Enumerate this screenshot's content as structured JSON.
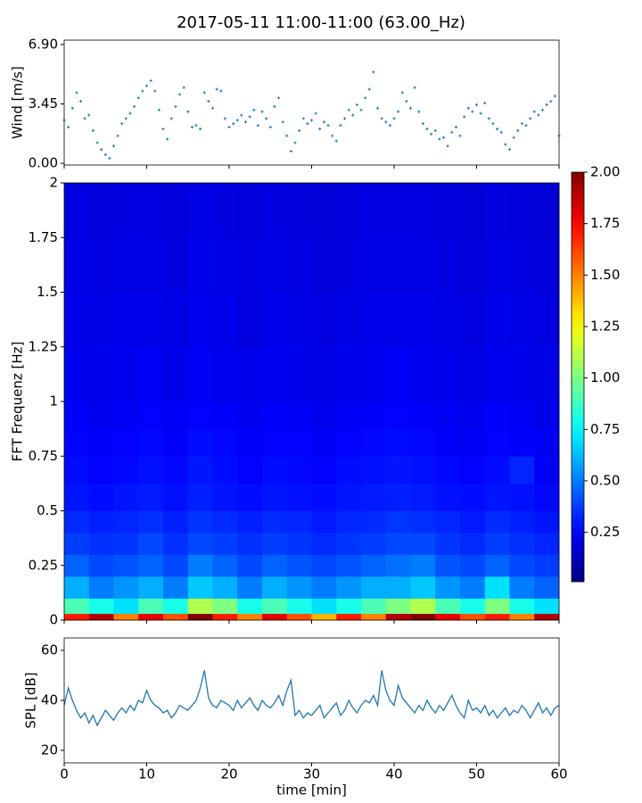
{
  "chart_data": [
    {
      "type": "scatter",
      "title": "2017-05-11 11:00-11:00 (63.00_Hz)",
      "ylabel": "Wind [m/s]",
      "color": "#1f77b4",
      "x": [
        0,
        0.5,
        1,
        1.5,
        2,
        2.5,
        3,
        3.5,
        4,
        4.5,
        5,
        5.5,
        6,
        6.5,
        7,
        7.5,
        8,
        8.5,
        9,
        9.5,
        10,
        10.5,
        11,
        11.5,
        12,
        12.5,
        13,
        13.5,
        14,
        14.5,
        15,
        15.5,
        16,
        16.5,
        17,
        17.5,
        18,
        18.5,
        19,
        19.5,
        20,
        20.5,
        21,
        21.5,
        22,
        22.5,
        23,
        23.5,
        24,
        24.5,
        25,
        25.5,
        26,
        26.5,
        27,
        27.5,
        28,
        28.5,
        29,
        29.5,
        30,
        30.5,
        31,
        31.5,
        32,
        32.5,
        33,
        33.5,
        34,
        34.5,
        35,
        35.5,
        36,
        36.5,
        37,
        37.5,
        38,
        38.5,
        39,
        39.5,
        40,
        40.5,
        41,
        41.5,
        42,
        42.5,
        43,
        43.5,
        44,
        44.5,
        45,
        45.5,
        46,
        46.5,
        47,
        47.5,
        48,
        48.5,
        49,
        49.5,
        50,
        50.5,
        51,
        51.5,
        52,
        52.5,
        53,
        53.5,
        54,
        54.5,
        55,
        55.5,
        56,
        56.5,
        57,
        57.5,
        58,
        58.5,
        59,
        59.5,
        60
      ],
      "values": [
        2.5,
        2.1,
        3.2,
        4.1,
        3.6,
        2.6,
        2.8,
        1.9,
        1.2,
        0.8,
        0.5,
        0.3,
        1.0,
        1.6,
        2.3,
        2.6,
        2.9,
        3.3,
        3.8,
        4.2,
        4.5,
        4.8,
        4.2,
        3.1,
        2.0,
        1.4,
        2.6,
        3.3,
        4.0,
        4.4,
        3.0,
        2.1,
        2.2,
        2.0,
        4.1,
        3.6,
        3.2,
        4.3,
        4.2,
        2.6,
        2.1,
        2.3,
        2.5,
        2.8,
        2.4,
        2.7,
        3.1,
        2.2,
        3.0,
        2.6,
        2.1,
        3.3,
        3.8,
        2.4,
        1.6,
        0.7,
        1.2,
        1.9,
        2.6,
        2.3,
        2.5,
        2.9,
        2.0,
        2.4,
        2.2,
        1.6,
        1.3,
        2.2,
        2.6,
        3.1,
        2.8,
        3.4,
        3.1,
        3.8,
        4.3,
        5.3,
        3.2,
        2.6,
        2.4,
        2.2,
        2.6,
        3.0,
        4.1,
        3.6,
        3.2,
        4.4,
        3.0,
        2.3,
        2.0,
        1.7,
        1.9,
        1.4,
        1.5,
        1.0,
        1.8,
        2.1,
        1.6,
        2.7,
        3.2,
        3.0,
        3.4,
        2.9,
        3.5,
        2.6,
        2.3,
        2.0,
        1.8,
        1.1,
        0.8,
        1.5,
        1.9,
        2.3,
        2.2,
        2.6,
        3.0,
        2.8,
        3.1,
        3.4,
        3.6,
        3.9,
        1.6
      ],
      "xlim": [
        0,
        60
      ],
      "xticks": [
        0,
        10,
        20,
        30,
        40,
        50,
        60
      ],
      "ylim": [
        -0.1,
        7.15
      ],
      "yticks": [
        {
          "value": 0,
          "label": "0.00"
        },
        {
          "value": 3.45,
          "label": "3.45"
        },
        {
          "value": 6.9,
          "label": "6.90"
        }
      ]
    },
    {
      "type": "heatmap",
      "ylabel": "FFT Frequenz [Hz]",
      "colormap": "jet",
      "clim": [
        0.01,
        2.0
      ],
      "x_edges": [
        0,
        3,
        6,
        9,
        12,
        15,
        18,
        21,
        24,
        27,
        30,
        33,
        36,
        39,
        42,
        45,
        48,
        51,
        54,
        57,
        60
      ],
      "y_edges": [
        0,
        0.03,
        0.1,
        0.2,
        0.3,
        0.4,
        0.5,
        0.625,
        0.75,
        0.875,
        1,
        1.25,
        1.5,
        1.75,
        2
      ],
      "values": [
        [
          1.7,
          1.9,
          1.5,
          1.8,
          1.6,
          2.0,
          1.7,
          1.5,
          1.8,
          1.6,
          1.4,
          1.7,
          1.5,
          1.9,
          2.0,
          1.8,
          1.6,
          1.7,
          1.5,
          1.9
        ],
        [
          0.9,
          0.8,
          0.7,
          0.9,
          0.8,
          1.1,
          1.0,
          0.8,
          0.9,
          0.8,
          0.7,
          0.8,
          0.9,
          1.0,
          1.1,
          0.9,
          0.8,
          1.0,
          0.8,
          0.7
        ],
        [
          0.6,
          0.5,
          0.55,
          0.6,
          0.5,
          0.65,
          0.6,
          0.5,
          0.6,
          0.55,
          0.5,
          0.55,
          0.6,
          0.6,
          0.65,
          0.55,
          0.5,
          0.7,
          0.5,
          0.45
        ],
        [
          0.45,
          0.4,
          0.42,
          0.45,
          0.4,
          0.5,
          0.45,
          0.4,
          0.45,
          0.42,
          0.4,
          0.42,
          0.45,
          0.48,
          0.5,
          0.42,
          0.4,
          0.45,
          0.4,
          0.38
        ],
        [
          0.38,
          0.35,
          0.36,
          0.4,
          0.35,
          0.4,
          0.38,
          0.35,
          0.38,
          0.36,
          0.34,
          0.36,
          0.38,
          0.4,
          0.4,
          0.36,
          0.34,
          0.38,
          0.35,
          0.33
        ],
        [
          0.34,
          0.32,
          0.33,
          0.35,
          0.32,
          0.36,
          0.34,
          0.32,
          0.34,
          0.33,
          0.31,
          0.33,
          0.34,
          0.36,
          0.35,
          0.33,
          0.31,
          0.34,
          0.32,
          0.3
        ],
        [
          0.3,
          0.28,
          0.3,
          0.31,
          0.29,
          0.32,
          0.3,
          0.28,
          0.3,
          0.29,
          0.28,
          0.3,
          0.31,
          0.32,
          0.31,
          0.29,
          0.28,
          0.3,
          0.29,
          0.27
        ],
        [
          0.28,
          0.26,
          0.27,
          0.29,
          0.27,
          0.3,
          0.28,
          0.26,
          0.28,
          0.27,
          0.26,
          0.28,
          0.29,
          0.3,
          0.29,
          0.27,
          0.26,
          0.28,
          0.33,
          0.25
        ],
        [
          0.26,
          0.25,
          0.26,
          0.27,
          0.25,
          0.28,
          0.27,
          0.25,
          0.26,
          0.26,
          0.24,
          0.26,
          0.27,
          0.28,
          0.27,
          0.25,
          0.24,
          0.26,
          0.25,
          0.24
        ],
        [
          0.25,
          0.23,
          0.24,
          0.26,
          0.24,
          0.26,
          0.25,
          0.23,
          0.25,
          0.24,
          0.23,
          0.24,
          0.25,
          0.26,
          0.25,
          0.24,
          0.23,
          0.25,
          0.24,
          0.22
        ],
        [
          0.23,
          0.22,
          0.23,
          0.24,
          0.22,
          0.24,
          0.23,
          0.22,
          0.23,
          0.22,
          0.21,
          0.22,
          0.23,
          0.24,
          0.23,
          0.22,
          0.21,
          0.23,
          0.22,
          0.21
        ],
        [
          0.22,
          0.21,
          0.22,
          0.22,
          0.21,
          0.23,
          0.22,
          0.2,
          0.22,
          0.21,
          0.2,
          0.21,
          0.22,
          0.22,
          0.22,
          0.21,
          0.2,
          0.22,
          0.21,
          0.2
        ],
        [
          0.21,
          0.2,
          0.21,
          0.21,
          0.2,
          0.22,
          0.21,
          0.2,
          0.21,
          0.2,
          0.19,
          0.2,
          0.21,
          0.21,
          0.21,
          0.2,
          0.19,
          0.21,
          0.2,
          0.19
        ],
        [
          0.2,
          0.19,
          0.2,
          0.2,
          0.19,
          0.21,
          0.2,
          0.19,
          0.2,
          0.19,
          0.18,
          0.19,
          0.2,
          0.2,
          0.2,
          0.19,
          0.18,
          0.2,
          0.19,
          0.18
        ]
      ],
      "xlim": [
        0,
        60
      ],
      "xticks": [
        0,
        10,
        20,
        30,
        40,
        50,
        60
      ],
      "ylim": [
        0,
        2
      ],
      "yticks": [
        0,
        0.25,
        0.5,
        0.75,
        1,
        1.25,
        1.5,
        1.75,
        2
      ],
      "colorbar_ticks": [
        0.25,
        {
          "value": 0.5,
          "label": "0.50"
        },
        0.75,
        {
          "value": 1,
          "label": "1.00"
        },
        1.25,
        {
          "value": 1.5,
          "label": "1.50"
        },
        1.75,
        {
          "value": 2,
          "label": "2.00"
        }
      ]
    },
    {
      "type": "line",
      "ylabel": "SPL [dB]",
      "xlabel": "time [min]",
      "color": "#1f77b4",
      "x": [
        0,
        0.5,
        1,
        1.5,
        2,
        2.5,
        3,
        3.5,
        4,
        4.5,
        5,
        5.5,
        6,
        6.5,
        7,
        7.5,
        8,
        8.5,
        9,
        9.5,
        10,
        10.5,
        11,
        11.5,
        12,
        12.5,
        13,
        13.5,
        14,
        14.5,
        15,
        15.5,
        16,
        16.5,
        17,
        17.5,
        18,
        18.5,
        19,
        19.5,
        20,
        20.5,
        21,
        21.5,
        22,
        22.5,
        23,
        23.5,
        24,
        24.5,
        25,
        25.5,
        26,
        26.5,
        27,
        27.5,
        28,
        28.5,
        29,
        29.5,
        30,
        30.5,
        31,
        31.5,
        32,
        32.5,
        33,
        33.5,
        34,
        34.5,
        35,
        35.5,
        36,
        36.5,
        37,
        37.5,
        38,
        38.5,
        39,
        39.5,
        40,
        40.5,
        41,
        41.5,
        42,
        42.5,
        43,
        43.5,
        44,
        44.5,
        45,
        45.5,
        46,
        46.5,
        47,
        47.5,
        48,
        48.5,
        49,
        49.5,
        50,
        50.5,
        51,
        51.5,
        52,
        52.5,
        53,
        53.5,
        54,
        54.5,
        55,
        55.5,
        56,
        56.5,
        57,
        57.5,
        58,
        58.5,
        59,
        59.5,
        60
      ],
      "values": [
        38,
        45,
        40,
        36,
        33,
        35,
        31,
        34,
        30,
        33,
        36,
        34,
        32,
        35,
        37,
        35,
        38,
        36,
        40,
        39,
        44,
        40,
        38,
        37,
        35,
        36,
        33,
        35,
        38,
        37,
        36,
        38,
        40,
        45,
        52,
        41,
        38,
        37,
        40,
        39,
        38,
        36,
        40,
        37,
        39,
        41,
        38,
        36,
        40,
        38,
        37,
        39,
        42,
        38,
        44,
        48,
        34,
        36,
        33,
        35,
        34,
        36,
        38,
        33,
        35,
        37,
        39,
        34,
        36,
        40,
        37,
        35,
        38,
        40,
        39,
        42,
        38,
        52,
        44,
        40,
        38,
        46,
        41,
        39,
        37,
        35,
        38,
        36,
        40,
        37,
        35,
        38,
        36,
        39,
        42,
        38,
        35,
        33,
        40,
        36,
        37,
        35,
        38,
        34,
        36,
        33,
        35,
        37,
        34,
        36,
        35,
        38,
        36,
        33,
        36,
        39,
        35,
        37,
        34,
        37,
        38
      ],
      "xlim": [
        0,
        60
      ],
      "xticks": [
        0,
        10,
        20,
        30,
        40,
        50,
        60
      ],
      "ylim": [
        15,
        65
      ],
      "yticks": [
        20,
        40,
        60
      ]
    }
  ]
}
